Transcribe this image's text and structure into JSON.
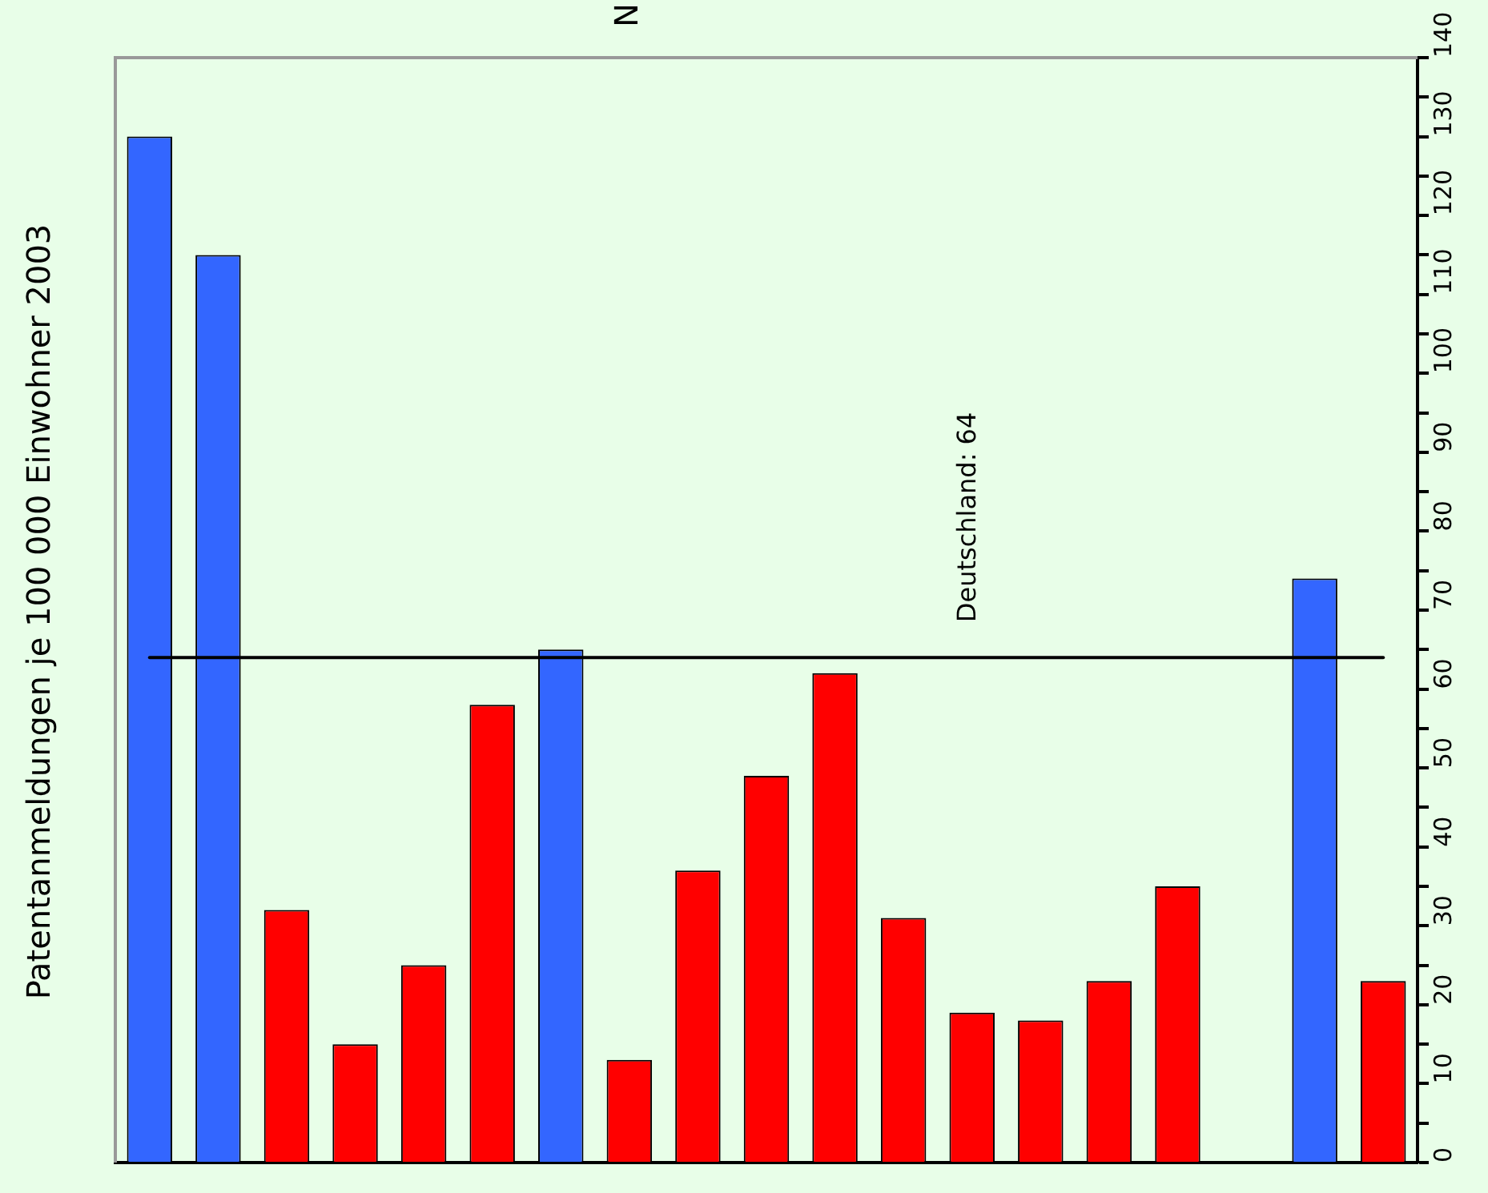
{
  "chart_data": {
    "type": "bar",
    "title": "N",
    "ylabel": "Patentanmeldungen je 100 000 Einwohner 2003",
    "categories": [
      null,
      null,
      null,
      null,
      null,
      null,
      null,
      null,
      null,
      null,
      null,
      null,
      null,
      null,
      null,
      null,
      null,
      null,
      null
    ],
    "values": [
      130,
      115,
      32,
      15,
      25,
      58,
      65,
      13,
      37,
      49,
      62,
      31,
      19,
      18,
      23,
      35,
      null,
      74,
      23
    ],
    "colors": [
      "#3366ff",
      "#3366ff",
      "#ff0000",
      "#ff0000",
      "#ff0000",
      "#ff0000",
      "#3366ff",
      "#ff0000",
      "#ff0000",
      "#ff0000",
      "#ff0000",
      "#ff0000",
      "#ff0000",
      "#ff0000",
      "#ff0000",
      "#ff0000",
      "#ff0000",
      "#3366ff",
      "#ff0000"
    ],
    "ylim": [
      0,
      140
    ],
    "yticks": [
      0,
      {
        "value": 5,
        "label": null
      },
      10,
      {
        "value": 15,
        "label": null
      },
      20,
      {
        "value": 25,
        "label": null
      },
      30,
      {
        "value": 35,
        "label": null
      },
      40,
      {
        "value": 45,
        "label": null
      },
      50,
      {
        "value": 55,
        "label": null
      },
      60,
      {
        "value": 65,
        "label": null
      },
      70,
      {
        "value": 75,
        "label": null
      },
      80,
      {
        "value": 85,
        "label": null
      },
      90,
      {
        "value": 95,
        "label": null
      },
      100,
      {
        "value": 105,
        "label": null
      },
      110,
      {
        "value": 115,
        "label": null
      },
      120,
      {
        "value": 125,
        "label": null
      },
      130,
      {
        "value": 135,
        "label": null
      },
      140
    ],
    "ref_lines": [
      {
        "axis": "y",
        "value": 64,
        "label": "Deutschland: 64",
        "color": "#000000"
      }
    ],
    "grid": false,
    "legend": false
  }
}
